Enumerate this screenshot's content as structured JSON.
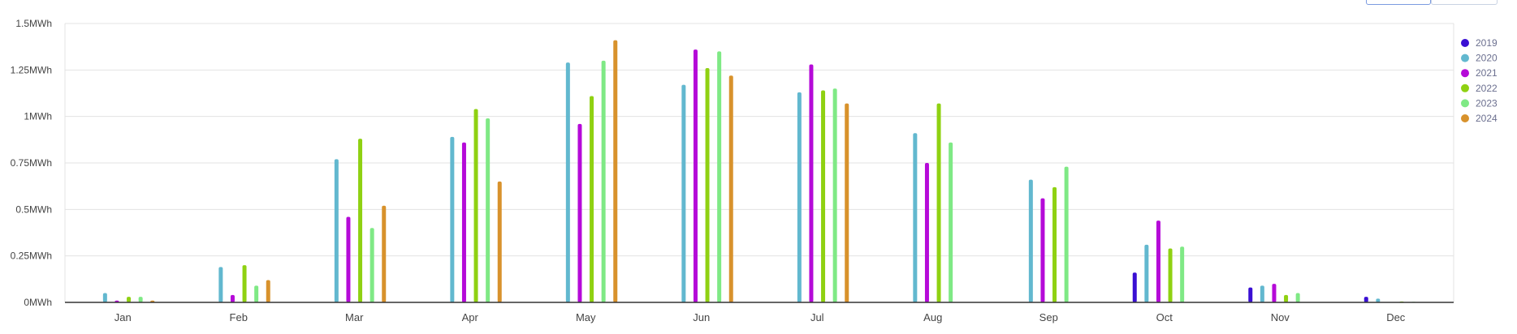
{
  "chart_data": {
    "type": "bar",
    "title": "",
    "xlabel": "",
    "ylabel": "",
    "unit": "MWh",
    "categories": [
      "Jan",
      "Feb",
      "Mar",
      "Apr",
      "May",
      "Jun",
      "Jul",
      "Aug",
      "Sep",
      "Oct",
      "Nov",
      "Dec"
    ],
    "ylim": [
      0,
      1.5
    ],
    "yticks": [
      {
        "value": 0,
        "label": "0MWh"
      },
      {
        "value": 0.25,
        "label": "0.25MWh"
      },
      {
        "value": 0.5,
        "label": "0.5MWh"
      },
      {
        "value": 0.75,
        "label": "0.75MWh"
      },
      {
        "value": 1,
        "label": "1MWh"
      },
      {
        "value": 1.25,
        "label": "1.25MWh"
      },
      {
        "value": 1.5,
        "label": "1.5MWh"
      }
    ],
    "grid": true,
    "legend_position": "right",
    "series": [
      {
        "name": "2019",
        "color": "#3a0fd3",
        "values": [
          null,
          null,
          null,
          null,
          null,
          null,
          null,
          null,
          null,
          0.16,
          0.08,
          0.03
        ]
      },
      {
        "name": "2020",
        "color": "#62b8cf",
        "values": [
          0.05,
          0.19,
          0.77,
          0.89,
          1.29,
          1.17,
          1.13,
          0.91,
          0.66,
          0.31,
          0.09,
          0.02
        ]
      },
      {
        "name": "2021",
        "color": "#b50ad8",
        "values": [
          0.01,
          0.04,
          0.46,
          0.86,
          0.96,
          1.36,
          1.28,
          0.75,
          0.56,
          0.44,
          0.1,
          null
        ]
      },
      {
        "name": "2022",
        "color": "#8fd112",
        "values": [
          0.03,
          0.2,
          0.88,
          1.04,
          1.11,
          1.26,
          1.14,
          1.07,
          0.62,
          0.29,
          0.04,
          0.005
        ]
      },
      {
        "name": "2023",
        "color": "#7fe985",
        "values": [
          0.03,
          0.09,
          0.4,
          0.99,
          1.3,
          1.35,
          1.15,
          0.86,
          0.73,
          0.3,
          0.05,
          0.003
        ]
      },
      {
        "name": "2024",
        "color": "#d8922c",
        "values": [
          0.01,
          0.12,
          0.52,
          0.65,
          1.41,
          1.22,
          1.07,
          null,
          null,
          null,
          null,
          null
        ]
      }
    ]
  }
}
